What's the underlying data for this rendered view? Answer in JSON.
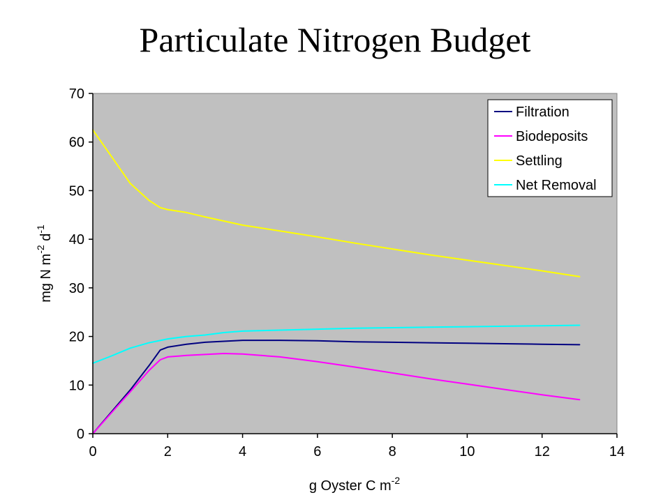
{
  "chart_data": {
    "type": "line",
    "title": "Particulate Nitrogen Budget",
    "xlabel": {
      "base": "g Oyster C m",
      "sup": "-2"
    },
    "ylabel": {
      "parts": [
        {
          "text": "mg N m",
          "sup": false
        },
        {
          "text": "-2",
          "sup": true
        },
        {
          "text": " d",
          "sup": false
        },
        {
          "text": "-1",
          "sup": true
        }
      ]
    },
    "xlim": [
      0,
      14
    ],
    "ylim": [
      0,
      70
    ],
    "xticks": [
      0,
      2,
      4,
      6,
      8,
      10,
      12,
      14
    ],
    "yticks": [
      0,
      10,
      20,
      30,
      40,
      50,
      60,
      70
    ],
    "grid": false,
    "legend_position": "top-right",
    "plot_background": "#c0c0c0",
    "series": [
      {
        "name": "Filtration",
        "color": "#000080",
        "points": [
          [
            0,
            0
          ],
          [
            0.5,
            4.5
          ],
          [
            1,
            9
          ],
          [
            1.5,
            14
          ],
          [
            1.8,
            17.2
          ],
          [
            2,
            17.8
          ],
          [
            2.5,
            18.4
          ],
          [
            3,
            18.8
          ],
          [
            4,
            19.2
          ],
          [
            5,
            19.2
          ],
          [
            6,
            19.1
          ],
          [
            7,
            18.9
          ],
          [
            8,
            18.8
          ],
          [
            9,
            18.7
          ],
          [
            10,
            18.6
          ],
          [
            11,
            18.5
          ],
          [
            12,
            18.4
          ],
          [
            13,
            18.3
          ]
        ]
      },
      {
        "name": "Biodeposits",
        "color": "#ff00ff",
        "points": [
          [
            0,
            0
          ],
          [
            0.5,
            4.3
          ],
          [
            1,
            8.6
          ],
          [
            1.5,
            13
          ],
          [
            1.8,
            15.2
          ],
          [
            2,
            15.8
          ],
          [
            2.5,
            16.1
          ],
          [
            3,
            16.3
          ],
          [
            3.5,
            16.5
          ],
          [
            4,
            16.4
          ],
          [
            5,
            15.8
          ],
          [
            6,
            14.8
          ],
          [
            7,
            13.7
          ],
          [
            8,
            12.5
          ],
          [
            9,
            11.3
          ],
          [
            10,
            10.2
          ],
          [
            11,
            9.1
          ],
          [
            12,
            8
          ],
          [
            13,
            7
          ]
        ]
      },
      {
        "name": "Settling",
        "color": "#ffff00",
        "points": [
          [
            0,
            62.5
          ],
          [
            0.5,
            57
          ],
          [
            1,
            51.5
          ],
          [
            1.5,
            48
          ],
          [
            1.8,
            46.5
          ],
          [
            2,
            46.1
          ],
          [
            2.5,
            45.5
          ],
          [
            3,
            44.6
          ],
          [
            4,
            42.9
          ],
          [
            5,
            41.7
          ],
          [
            6,
            40.5
          ],
          [
            7,
            39.2
          ],
          [
            8,
            38
          ],
          [
            9,
            36.8
          ],
          [
            10,
            35.7
          ],
          [
            11,
            34.6
          ],
          [
            12,
            33.5
          ],
          [
            13,
            32.3
          ]
        ]
      },
      {
        "name": "Net Removal",
        "color": "#00ffff",
        "points": [
          [
            0,
            14.5
          ],
          [
            0.5,
            16
          ],
          [
            1,
            17.6
          ],
          [
            1.5,
            18.7
          ],
          [
            2,
            19.5
          ],
          [
            2.5,
            20
          ],
          [
            3,
            20.3
          ],
          [
            3.5,
            20.8
          ],
          [
            4,
            21.1
          ],
          [
            5,
            21.3
          ],
          [
            6,
            21.5
          ],
          [
            7,
            21.7
          ],
          [
            8,
            21.8
          ],
          [
            9,
            21.9
          ],
          [
            10,
            22
          ],
          [
            11,
            22.1
          ],
          [
            12,
            22.2
          ],
          [
            13,
            22.3
          ]
        ]
      }
    ]
  }
}
